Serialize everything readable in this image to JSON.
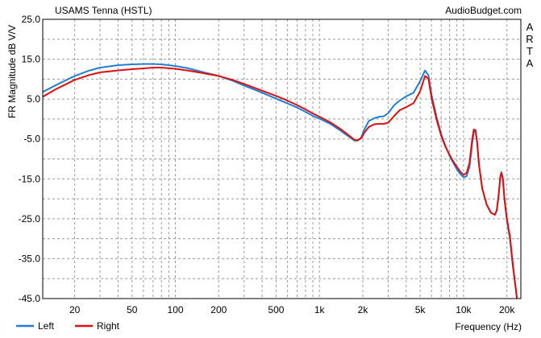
{
  "chart_data": {
    "type": "line",
    "title": "USAMS Tenna (HSTL)",
    "source": "AudioBudget.com",
    "side_label": "ARTA",
    "xlabel": "Frequency (Hz)",
    "ylabel": "FR Magnitude dB V/V",
    "x_scale": "log",
    "xlim": [
      12,
      25000
    ],
    "ylim": [
      -45,
      25
    ],
    "x_ticks": [
      {
        "value": 20,
        "label": "20"
      },
      {
        "value": 50,
        "label": "50"
      },
      {
        "value": 100,
        "label": "100"
      },
      {
        "value": 200,
        "label": "200"
      },
      {
        "value": 500,
        "label": "500"
      },
      {
        "value": 1000,
        "label": "1k"
      },
      {
        "value": 2000,
        "label": "2k"
      },
      {
        "value": 5000,
        "label": "5k"
      },
      {
        "value": 10000,
        "label": "10k"
      },
      {
        "value": 20000,
        "label": "20k"
      }
    ],
    "y_ticks": [
      {
        "value": 25,
        "label": "25.0"
      },
      {
        "value": 15,
        "label": "15.0"
      },
      {
        "value": 5,
        "label": "5.0"
      },
      {
        "value": -5,
        "label": "-5.0"
      },
      {
        "value": -15,
        "label": "-15.0"
      },
      {
        "value": -25,
        "label": "-25.0"
      },
      {
        "value": -35,
        "label": "-35.0"
      },
      {
        "value": -45,
        "label": "-45.0"
      }
    ],
    "grid": true,
    "legend_position": "bottom-left",
    "series": [
      {
        "name": "Left",
        "color": "#1f7fd6",
        "points": [
          [
            12,
            6.8
          ],
          [
            15,
            8.6
          ],
          [
            20,
            10.8
          ],
          [
            25,
            12.1
          ],
          [
            30,
            12.9
          ],
          [
            40,
            13.5
          ],
          [
            50,
            13.7
          ],
          [
            60,
            13.8
          ],
          [
            70,
            13.8
          ],
          [
            80,
            13.7
          ],
          [
            100,
            13.3
          ],
          [
            120,
            12.8
          ],
          [
            150,
            11.9
          ],
          [
            200,
            10.8
          ],
          [
            250,
            9.6
          ],
          [
            300,
            8.4
          ],
          [
            400,
            6.6
          ],
          [
            500,
            5.1
          ],
          [
            600,
            3.9
          ],
          [
            700,
            2.9
          ],
          [
            800,
            1.8
          ],
          [
            900,
            0.8
          ],
          [
            1000,
            0.1
          ],
          [
            1200,
            -1.3
          ],
          [
            1400,
            -2.9
          ],
          [
            1600,
            -4.4
          ],
          [
            1750,
            -5.4
          ],
          [
            1850,
            -5.4
          ],
          [
            1950,
            -4.6
          ],
          [
            2050,
            -2.6
          ],
          [
            2200,
            -0.5
          ],
          [
            2400,
            0.2
          ],
          [
            2600,
            0.6
          ],
          [
            2800,
            0.7
          ],
          [
            3000,
            1.5
          ],
          [
            3300,
            3.5
          ],
          [
            3600,
            4.6
          ],
          [
            4000,
            5.7
          ],
          [
            4500,
            6.6
          ],
          [
            5000,
            9.5
          ],
          [
            5400,
            12.2
          ],
          [
            5700,
            11.0
          ],
          [
            6000,
            6.0
          ],
          [
            6500,
            0.5
          ],
          [
            7000,
            -3.8
          ],
          [
            7500,
            -6.8
          ],
          [
            8000,
            -9.2
          ],
          [
            8500,
            -11.0
          ],
          [
            9000,
            -12.6
          ],
          [
            9500,
            -13.8
          ],
          [
            10000,
            -14.6
          ],
          [
            10500,
            -14.3
          ],
          [
            11000,
            -12.0
          ],
          [
            11500,
            -6.0
          ],
          [
            11800,
            -3.2
          ],
          [
            12100,
            -3.0
          ],
          [
            12400,
            -5.5
          ],
          [
            12800,
            -11.5
          ],
          [
            13500,
            -17.5
          ],
          [
            14500,
            -21.5
          ],
          [
            15500,
            -23.5
          ],
          [
            16500,
            -24.0
          ],
          [
            17000,
            -23.0
          ],
          [
            17500,
            -19.5
          ],
          [
            18000,
            -14.5
          ],
          [
            18300,
            -13.3
          ],
          [
            18700,
            -14.5
          ],
          [
            19300,
            -20.5
          ],
          [
            20000,
            -25.5
          ],
          [
            21000,
            -30.0
          ],
          [
            22000,
            -37.0
          ],
          [
            23500,
            -45.0
          ]
        ]
      },
      {
        "name": "Right",
        "color": "#e01010",
        "points": [
          [
            12,
            5.6
          ],
          [
            15,
            7.6
          ],
          [
            20,
            9.8
          ],
          [
            25,
            11.0
          ],
          [
            30,
            11.7
          ],
          [
            40,
            12.2
          ],
          [
            50,
            12.5
          ],
          [
            60,
            12.7
          ],
          [
            70,
            12.9
          ],
          [
            80,
            12.9
          ],
          [
            100,
            12.6
          ],
          [
            120,
            12.2
          ],
          [
            150,
            11.6
          ],
          [
            200,
            10.8
          ],
          [
            250,
            9.8
          ],
          [
            300,
            8.8
          ],
          [
            400,
            7.1
          ],
          [
            500,
            5.8
          ],
          [
            600,
            4.6
          ],
          [
            700,
            3.5
          ],
          [
            800,
            2.4
          ],
          [
            900,
            1.4
          ],
          [
            1000,
            0.6
          ],
          [
            1200,
            -0.9
          ],
          [
            1400,
            -2.5
          ],
          [
            1600,
            -4.1
          ],
          [
            1750,
            -5.2
          ],
          [
            1850,
            -5.3
          ],
          [
            1950,
            -4.8
          ],
          [
            2050,
            -3.4
          ],
          [
            2200,
            -2.0
          ],
          [
            2400,
            -1.3
          ],
          [
            2600,
            -1.2
          ],
          [
            2800,
            -1.2
          ],
          [
            3000,
            -0.9
          ],
          [
            3300,
            0.8
          ],
          [
            3600,
            2.2
          ],
          [
            4000,
            3.0
          ],
          [
            4500,
            4.0
          ],
          [
            5000,
            7.0
          ],
          [
            5400,
            10.8
          ],
          [
            5700,
            10.2
          ],
          [
            6000,
            5.2
          ],
          [
            6500,
            -0.2
          ],
          [
            7000,
            -4.2
          ],
          [
            7500,
            -7.0
          ],
          [
            8000,
            -9.0
          ],
          [
            8500,
            -10.7
          ],
          [
            9000,
            -12.0
          ],
          [
            9500,
            -13.2
          ],
          [
            10000,
            -14.0
          ],
          [
            10500,
            -13.5
          ],
          [
            11000,
            -11.0
          ],
          [
            11500,
            -5.0
          ],
          [
            11800,
            -2.6
          ],
          [
            12100,
            -2.8
          ],
          [
            12400,
            -5.5
          ],
          [
            12800,
            -11.5
          ],
          [
            13500,
            -17.5
          ],
          [
            14500,
            -21.5
          ],
          [
            15500,
            -23.5
          ],
          [
            16500,
            -24.0
          ],
          [
            17000,
            -22.8
          ],
          [
            17500,
            -19.2
          ],
          [
            18000,
            -14.5
          ],
          [
            18300,
            -13.6
          ],
          [
            18700,
            -14.8
          ],
          [
            19300,
            -20.5
          ],
          [
            20000,
            -25.0
          ],
          [
            21000,
            -29.5
          ],
          [
            22000,
            -36.5
          ],
          [
            23500,
            -45.0
          ]
        ]
      }
    ]
  }
}
